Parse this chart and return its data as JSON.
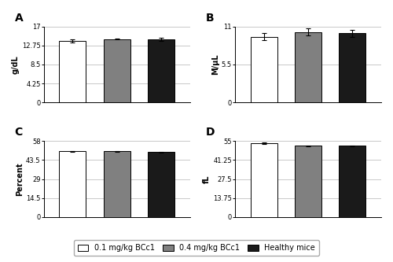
{
  "A": {
    "label": "A",
    "ylabel": "g/dL",
    "values": [
      13.7,
      14.2,
      14.15
    ],
    "errors": [
      0.35,
      0.15,
      0.4
    ],
    "ylim": [
      0,
      17
    ],
    "yticks": [
      0,
      4.25,
      8.5,
      12.75,
      17
    ],
    "yticklabels": [
      "0",
      "4.25",
      "8.5",
      "12.75",
      "17"
    ]
  },
  "B": {
    "label": "B",
    "ylabel": "M/μL",
    "values": [
      9.5,
      10.2,
      10.0
    ],
    "errors": [
      0.5,
      0.5,
      0.5
    ],
    "ylim": [
      0,
      11
    ],
    "yticks": [
      0,
      5.5,
      11
    ],
    "yticklabels": [
      "0",
      "5.5",
      "11"
    ]
  },
  "C": {
    "label": "C",
    "ylabel": "Percent",
    "values": [
      50.2,
      50.1,
      49.7
    ],
    "errors": [
      0.4,
      0.4,
      0.35
    ],
    "ylim": [
      0,
      58
    ],
    "yticks": [
      0,
      14.5,
      29,
      43.5,
      58
    ],
    "yticklabels": [
      "0",
      "14.5",
      "29",
      "43.5",
      "58"
    ]
  },
  "D": {
    "label": "D",
    "ylabel": "fL",
    "values": [
      53.5,
      51.5,
      51.5
    ],
    "errors": [
      0.4,
      0.5,
      0.4
    ],
    "ylim": [
      0,
      55
    ],
    "yticks": [
      0,
      13.75,
      27.5,
      41.25,
      55
    ],
    "yticklabels": [
      "0",
      "13.75",
      "27.5",
      "41.25",
      "55"
    ]
  },
  "bar_colors": [
    "#ffffff",
    "#808080",
    "#1a1a1a"
  ],
  "bar_edgecolor": "#000000",
  "bar_width": 0.6,
  "legend_labels": [
    "0.1 mg/kg BCc1",
    "0.4 mg/kg BCc1",
    "Healthy mice"
  ],
  "background_color": "#ffffff",
  "errorbar_color": "#000000",
  "errorbar_capsize": 2,
  "errorbar_linewidth": 0.8
}
